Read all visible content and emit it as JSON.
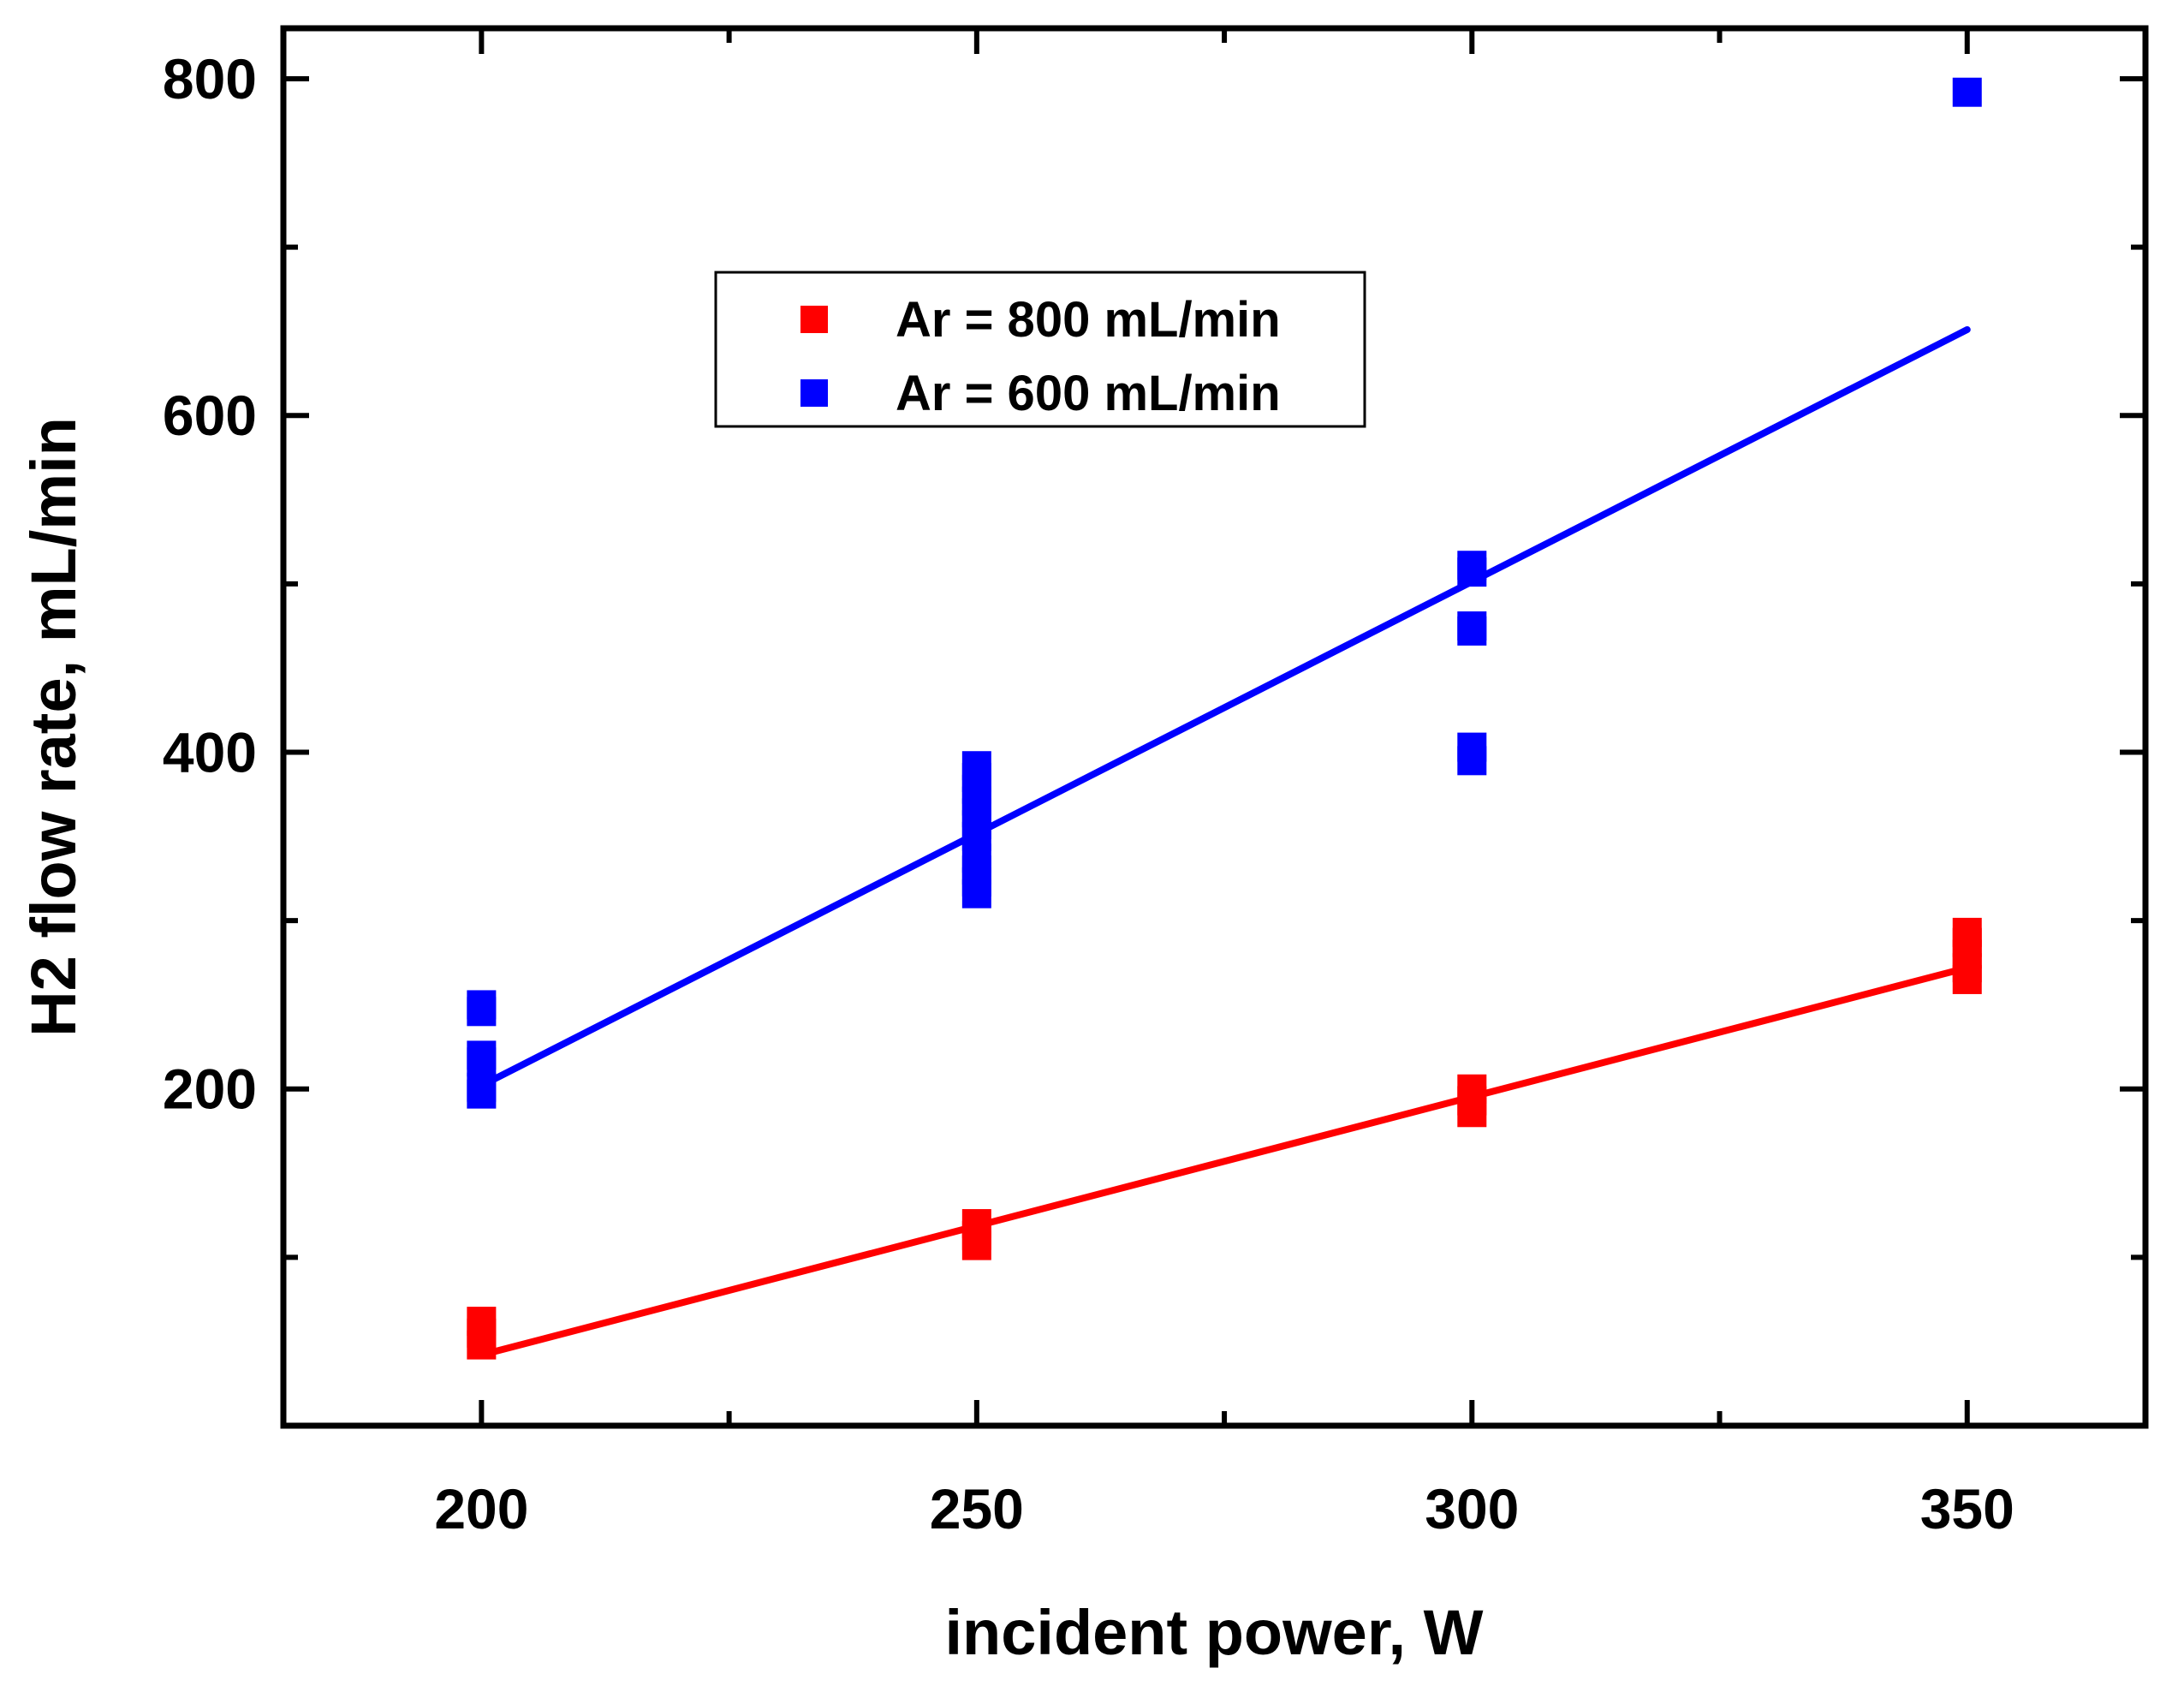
{
  "chart_data": {
    "type": "scatter",
    "title": "",
    "xlabel": "incident power, W",
    "ylabel": "H2 flow rate, mL/min",
    "xlim": [
      180,
      368
    ],
    "ylim": [
      0,
      830
    ],
    "x_ticks": [
      200,
      250,
      300,
      350
    ],
    "y_ticks": [
      200,
      400,
      600,
      800
    ],
    "x_minor_ticks": [
      225,
      275,
      325
    ],
    "y_minor_ticks": [
      100,
      300,
      500,
      700
    ],
    "grid": false,
    "legend_position": "upper-center",
    "series": [
      {
        "name": "Ar = 800 mL/min",
        "color": "#ff0000",
        "marker": "square",
        "points": [
          {
            "x": 200,
            "y": 48
          },
          {
            "x": 200,
            "y": 55
          },
          {
            "x": 200,
            "y": 62
          },
          {
            "x": 250,
            "y": 107
          },
          {
            "x": 250,
            "y": 113
          },
          {
            "x": 250,
            "y": 120
          },
          {
            "x": 300,
            "y": 186
          },
          {
            "x": 300,
            "y": 193
          },
          {
            "x": 300,
            "y": 200
          },
          {
            "x": 350,
            "y": 265
          },
          {
            "x": 350,
            "y": 272
          },
          {
            "x": 350,
            "y": 280
          },
          {
            "x": 350,
            "y": 287
          },
          {
            "x": 350,
            "y": 293
          }
        ],
        "fit": {
          "x": [
            200,
            350
          ],
          "y": [
            42,
            272
          ]
        }
      },
      {
        "name": "Ar = 600 mL/min",
        "color": "#0000ff",
        "marker": "square",
        "points": [
          {
            "x": 200,
            "y": 197
          },
          {
            "x": 200,
            "y": 201
          },
          {
            "x": 200,
            "y": 216
          },
          {
            "x": 200,
            "y": 220
          },
          {
            "x": 200,
            "y": 246
          },
          {
            "x": 200,
            "y": 250
          },
          {
            "x": 250,
            "y": 316
          },
          {
            "x": 250,
            "y": 323
          },
          {
            "x": 250,
            "y": 330
          },
          {
            "x": 250,
            "y": 337
          },
          {
            "x": 250,
            "y": 350
          },
          {
            "x": 250,
            "y": 357
          },
          {
            "x": 250,
            "y": 364
          },
          {
            "x": 250,
            "y": 371
          },
          {
            "x": 250,
            "y": 378
          },
          {
            "x": 250,
            "y": 385
          },
          {
            "x": 250,
            "y": 392
          },
          {
            "x": 300,
            "y": 395
          },
          {
            "x": 300,
            "y": 403
          },
          {
            "x": 300,
            "y": 472
          },
          {
            "x": 300,
            "y": 475
          },
          {
            "x": 300,
            "y": 507
          },
          {
            "x": 300,
            "y": 511
          },
          {
            "x": 350,
            "y": 792
          }
        ],
        "fit": {
          "x": [
            200,
            350
          ],
          "y": [
            202,
            651
          ]
        }
      }
    ]
  }
}
